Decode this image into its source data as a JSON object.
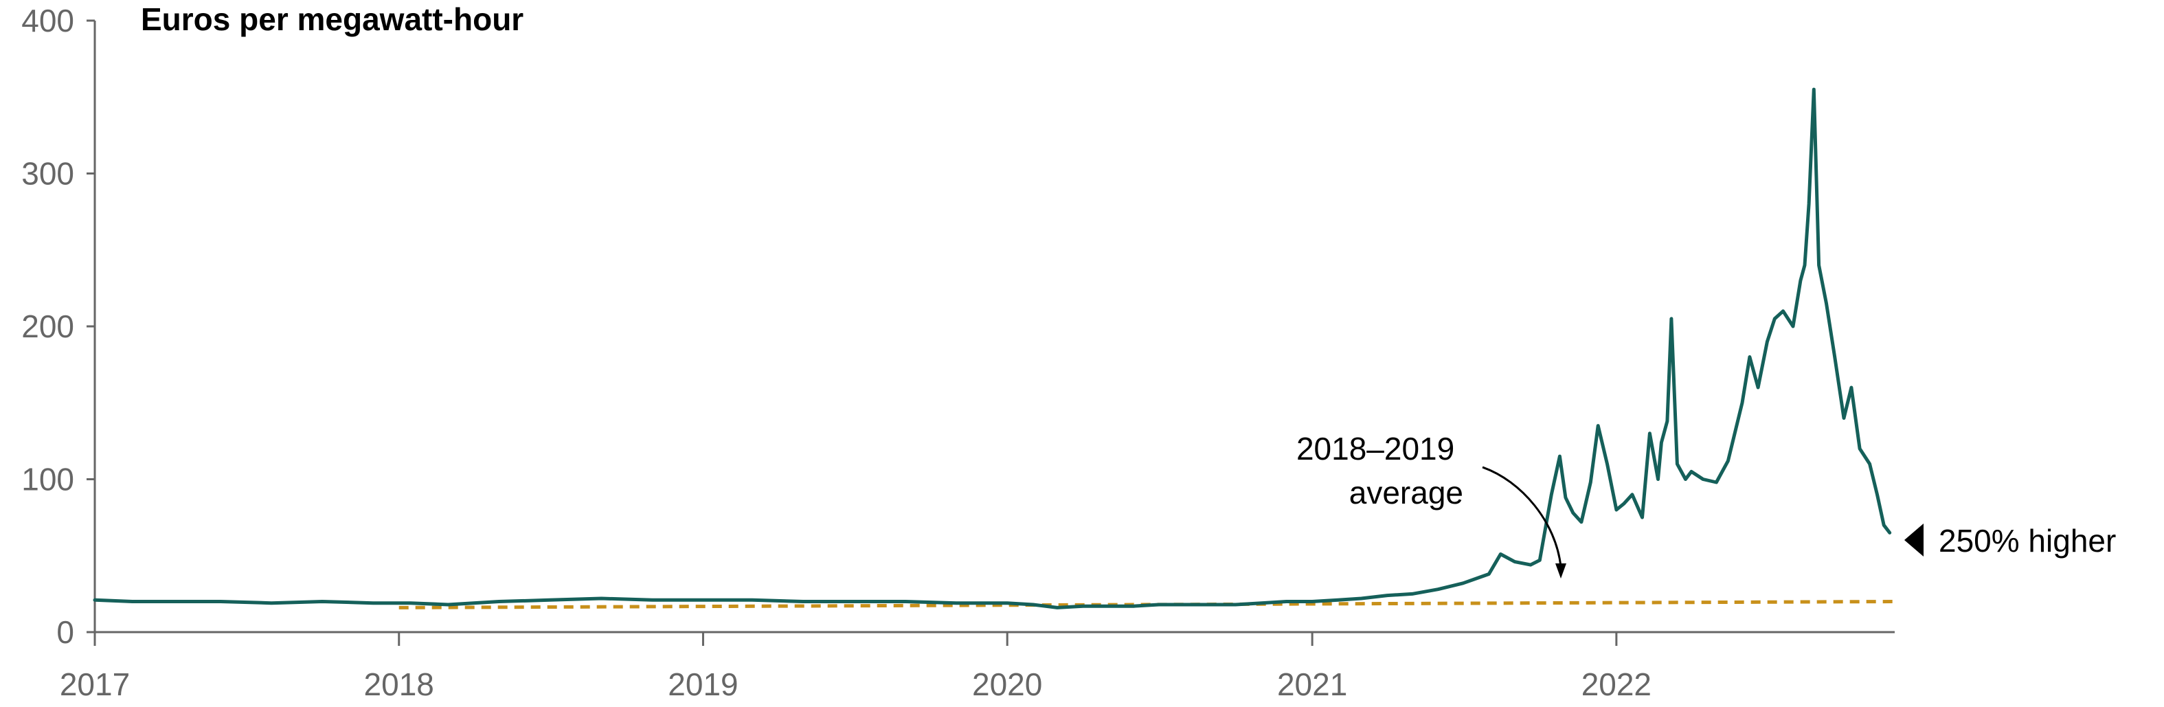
{
  "chart_data": {
    "type": "line",
    "ylabel": "Euros per megawatt-hour",
    "xlabel": "",
    "ylim": [
      0,
      400
    ],
    "yticks": [
      "0",
      "100",
      "200",
      "300",
      "400"
    ],
    "xlim": [
      "2017-01-01",
      "2022-12-01"
    ],
    "xticks": [
      "2017",
      "2018",
      "2019",
      "2020",
      "2021",
      "2022"
    ],
    "grid": false,
    "colors": {
      "price": "#15605A",
      "average": "#C8901A",
      "axis": "#666666",
      "text": "#000000"
    },
    "series": [
      {
        "key": "price",
        "style": "solid",
        "x": [
          "2017-01-01",
          "2017-02-15",
          "2017-04-01",
          "2017-06-01",
          "2017-08-01",
          "2017-10-01",
          "2017-12-01",
          "2018-01-15",
          "2018-03-01",
          "2018-05-01",
          "2018-07-01",
          "2018-09-01",
          "2018-11-01",
          "2019-01-01",
          "2019-03-01",
          "2019-05-01",
          "2019-07-01",
          "2019-09-01",
          "2019-11-01",
          "2020-01-01",
          "2020-02-01",
          "2020-03-01",
          "2020-04-01",
          "2020-05-01",
          "2020-06-01",
          "2020-07-01",
          "2020-08-01",
          "2020-09-01",
          "2020-10-01",
          "2020-11-01",
          "2020-12-01",
          "2021-01-01",
          "2021-02-01",
          "2021-03-01",
          "2021-04-01",
          "2021-05-01",
          "2021-06-01",
          "2021-07-01",
          "2021-08-01",
          "2021-08-15",
          "2021-09-01",
          "2021-09-20",
          "2021-10-01",
          "2021-10-15",
          "2021-10-25",
          "2021-11-01",
          "2021-11-10",
          "2021-11-20",
          "2021-12-01",
          "2021-12-10",
          "2021-12-21",
          "2022-01-01",
          "2022-01-10",
          "2022-01-20",
          "2022-02-01",
          "2022-02-10",
          "2022-02-20",
          "2022-02-24",
          "2022-03-03",
          "2022-03-08",
          "2022-03-15",
          "2022-03-25",
          "2022-04-01",
          "2022-04-15",
          "2022-05-01",
          "2022-05-15",
          "2022-06-01",
          "2022-06-10",
          "2022-06-20",
          "2022-07-01",
          "2022-07-10",
          "2022-07-20",
          "2022-08-01",
          "2022-08-10",
          "2022-08-15",
          "2022-08-20",
          "2022-08-26",
          "2022-09-01",
          "2022-09-10",
          "2022-09-20",
          "2022-10-01",
          "2022-10-10",
          "2022-10-20",
          "2022-11-01",
          "2022-11-10",
          "2022-11-18",
          "2022-11-25"
        ],
        "y": [
          21,
          20,
          20,
          20,
          19,
          20,
          19,
          19,
          18,
          20,
          21,
          22,
          21,
          21,
          21,
          20,
          20,
          20,
          19,
          19,
          18,
          16,
          17,
          17,
          17,
          18,
          18,
          18,
          18,
          19,
          20,
          20,
          21,
          22,
          24,
          25,
          28,
          32,
          38,
          51,
          46,
          44,
          47,
          90,
          115,
          88,
          78,
          72,
          98,
          135,
          110,
          80,
          84,
          90,
          75,
          130,
          100,
          124,
          138,
          205,
          110,
          100,
          105,
          100,
          98,
          112,
          150,
          180,
          160,
          190,
          205,
          210,
          200,
          230,
          240,
          280,
          355,
          240,
          215,
          180,
          140,
          160,
          120,
          110,
          90,
          70,
          65
        ]
      },
      {
        "key": "average",
        "style": "dashed",
        "x": [
          "2018-01-01",
          "2022-12-01"
        ],
        "y": [
          16,
          20
        ]
      }
    ],
    "annotations": [
      {
        "key": "average-label",
        "lines": [
          "2018–2019",
          "average"
        ]
      },
      {
        "key": "change-label",
        "text": "250% higher"
      }
    ]
  }
}
